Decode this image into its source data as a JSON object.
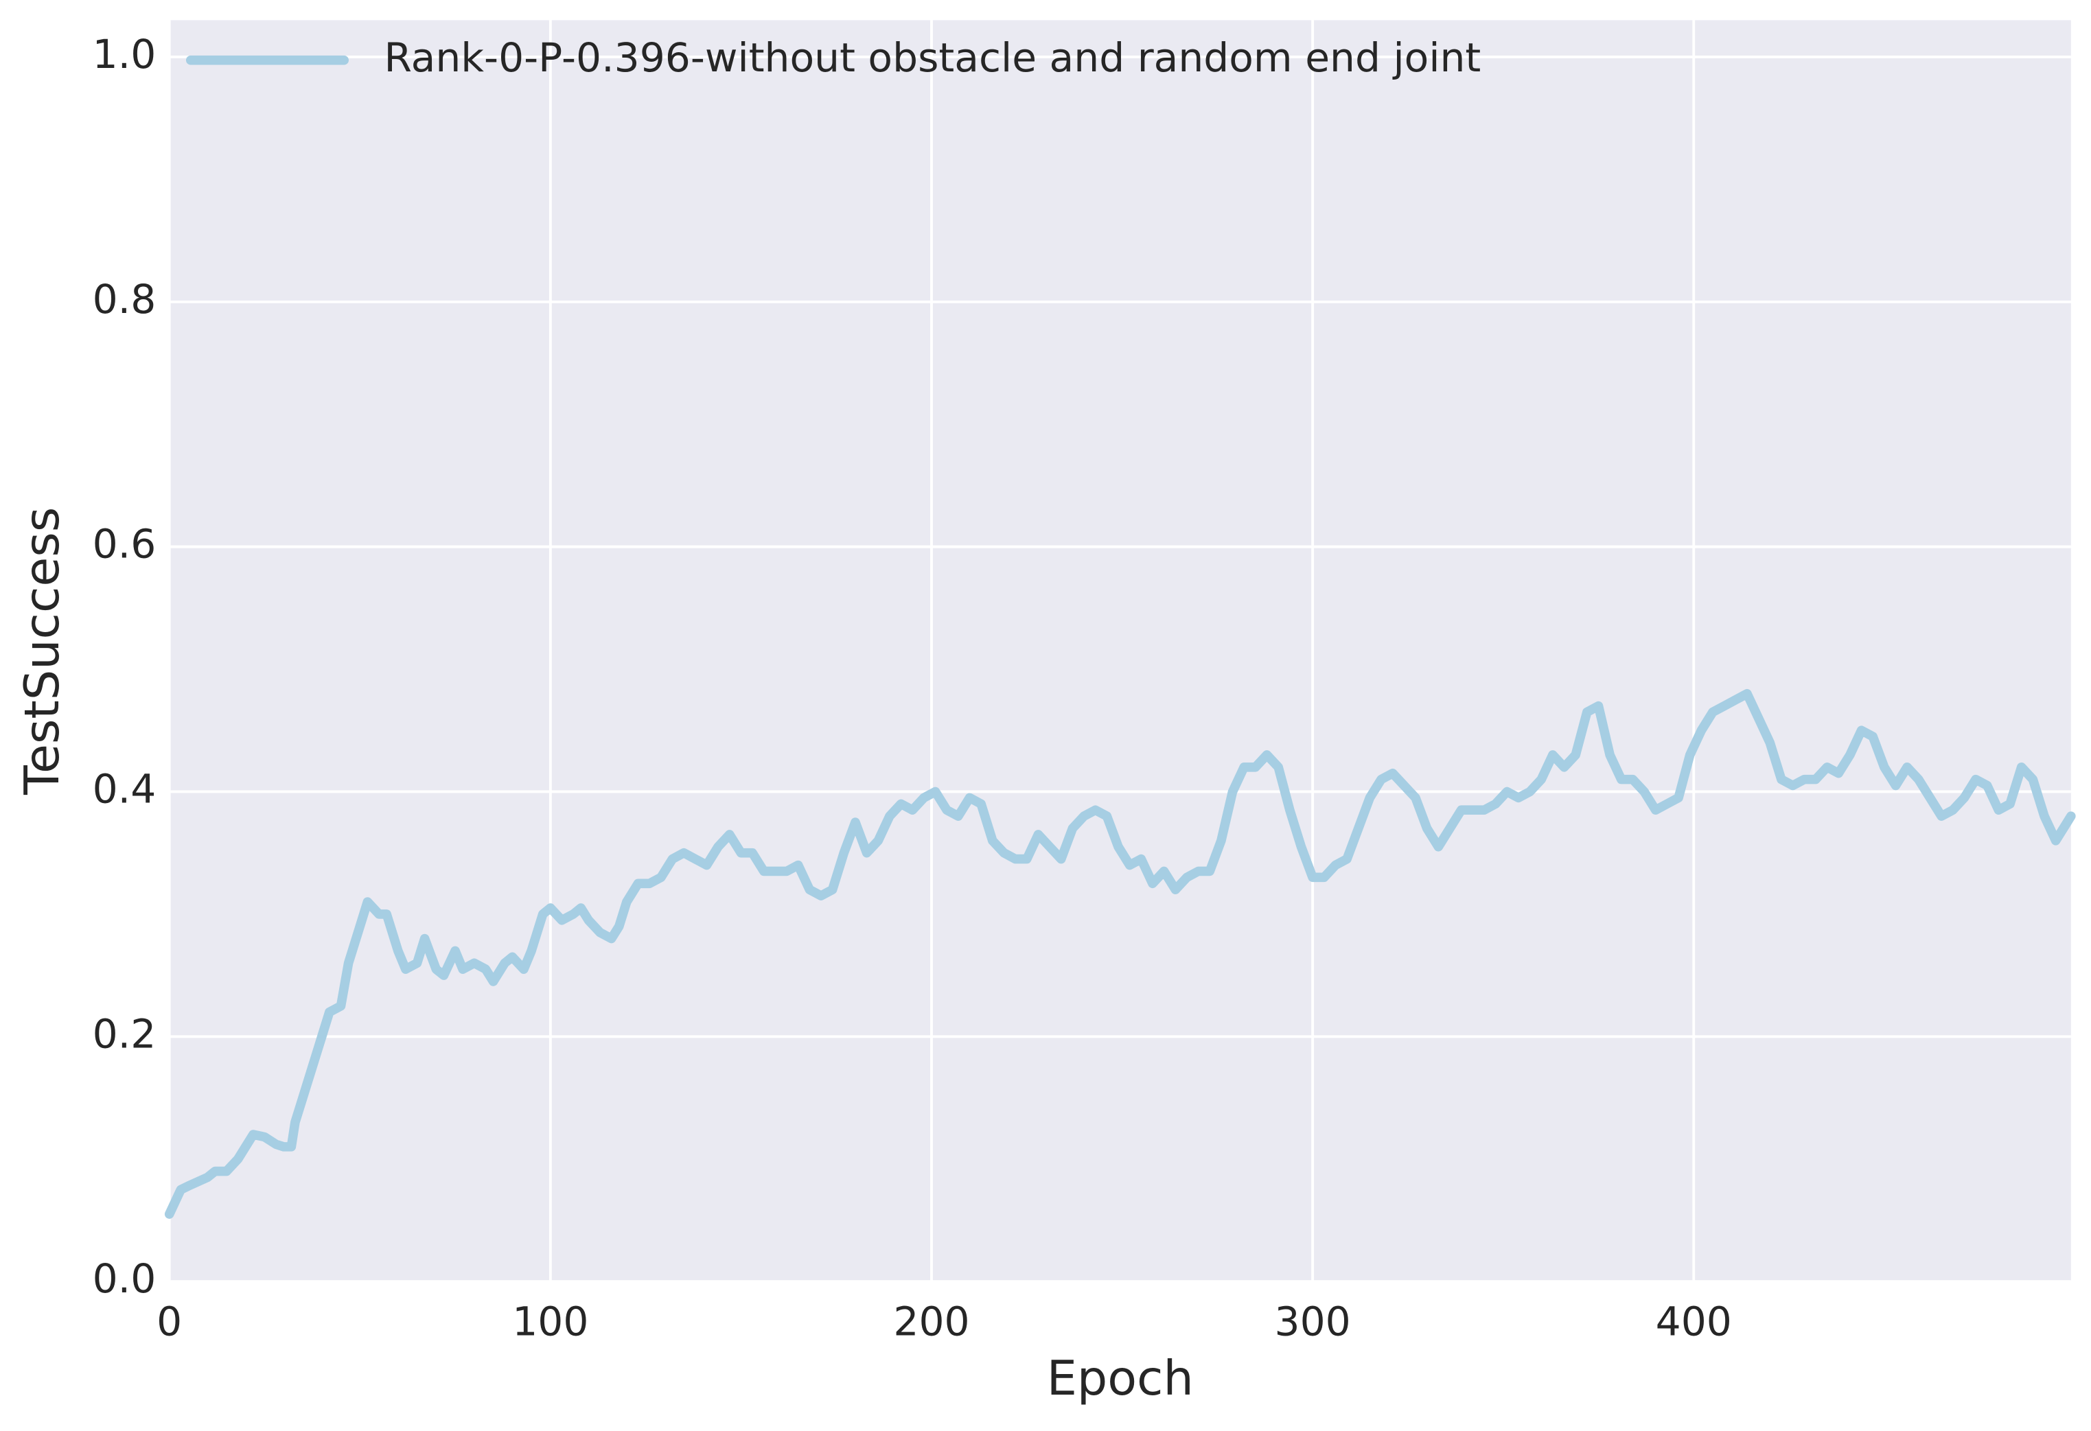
{
  "chart_data": {
    "type": "line",
    "xlabel": "Epoch",
    "ylabel": "TestSuccess",
    "xlim": [
      0,
      499
    ],
    "ylim": [
      0,
      1.03
    ],
    "xticks": [
      0,
      100,
      200,
      300,
      400
    ],
    "yticks": [
      {
        "value": 0,
        "label": "0.0"
      },
      0.2,
      0.4,
      0.6,
      0.8,
      {
        "value": 1,
        "label": "1.0"
      }
    ],
    "grid": true,
    "legend": "upper left",
    "background": "#eaeaf2",
    "x": [
      0,
      3,
      5,
      10,
      12,
      15,
      18,
      20,
      22,
      25,
      28,
      30,
      32,
      33,
      35,
      37,
      40,
      42,
      45,
      47,
      50,
      52,
      55,
      57,
      60,
      62,
      65,
      67,
      70,
      72,
      75,
      77,
      80,
      83,
      85,
      88,
      90,
      93,
      95,
      98,
      100,
      103,
      106,
      108,
      110,
      113,
      116,
      118,
      120,
      123,
      126,
      129,
      132,
      135,
      138,
      141,
      144,
      147,
      150,
      153,
      156,
      159,
      162,
      165,
      168,
      171,
      174,
      177,
      180,
      183,
      186,
      189,
      192,
      195,
      198,
      201,
      204,
      207,
      210,
      213,
      216,
      219,
      222,
      225,
      228,
      231,
      234,
      237,
      240,
      243,
      246,
      249,
      252,
      255,
      258,
      261,
      264,
      267,
      270,
      273,
      276,
      279,
      282,
      285,
      288,
      291,
      294,
      297,
      300,
      303,
      306,
      309,
      312,
      315,
      318,
      321,
      324,
      327,
      330,
      333,
      336,
      339,
      342,
      345,
      348,
      351,
      354,
      357,
      360,
      363,
      366,
      369,
      372,
      375,
      378,
      381,
      384,
      387,
      390,
      393,
      396,
      399,
      402,
      405,
      408,
      411,
      414,
      417,
      420,
      423,
      426,
      429,
      432,
      435,
      438,
      441,
      444,
      447,
      450,
      453,
      456,
      459,
      462,
      465,
      468,
      471,
      474,
      477,
      480,
      483,
      486,
      489,
      492,
      495,
      497,
      499
    ],
    "series": [
      {
        "name": "Rank-0-P-0.396-without obstacle and random end joint",
        "color": "#a6cee3",
        "values": [
          0.055,
          0.075,
          0.078,
          0.085,
          0.09,
          0.09,
          0.1,
          0.11,
          0.12,
          0.118,
          0.112,
          0.11,
          0.11,
          0.13,
          0.15,
          0.17,
          0.2,
          0.22,
          0.225,
          0.26,
          0.29,
          0.31,
          0.3,
          0.3,
          0.27,
          0.255,
          0.26,
          0.28,
          0.255,
          0.25,
          0.27,
          0.255,
          0.26,
          0.255,
          0.245,
          0.26,
          0.265,
          0.255,
          0.27,
          0.3,
          0.305,
          0.295,
          0.3,
          0.305,
          0.295,
          0.285,
          0.28,
          0.29,
          0.31,
          0.325,
          0.325,
          0.33,
          0.345,
          0.35,
          0.345,
          0.34,
          0.355,
          0.365,
          0.35,
          0.35,
          0.335,
          0.335,
          0.335,
          0.34,
          0.32,
          0.315,
          0.32,
          0.35,
          0.375,
          0.35,
          0.36,
          0.38,
          0.39,
          0.385,
          0.395,
          0.4,
          0.385,
          0.38,
          0.395,
          0.39,
          0.36,
          0.35,
          0.345,
          0.345,
          0.365,
          0.355,
          0.345,
          0.37,
          0.38,
          0.385,
          0.38,
          0.355,
          0.34,
          0.345,
          0.325,
          0.335,
          0.32,
          0.33,
          0.335,
          0.335,
          0.36,
          0.4,
          0.42,
          0.42,
          0.43,
          0.42,
          0.385,
          0.355,
          0.33,
          0.33,
          0.34,
          0.345,
          0.37,
          0.395,
          0.41,
          0.415,
          0.405,
          0.395,
          0.37,
          0.355,
          0.37,
          0.385,
          0.385,
          0.385,
          0.39,
          0.4,
          0.395,
          0.4,
          0.41,
          0.43,
          0.42,
          0.43,
          0.465,
          0.47,
          0.43,
          0.41,
          0.41,
          0.4,
          0.385,
          0.39,
          0.395,
          0.43,
          0.45,
          0.465,
          0.47,
          0.475,
          0.48,
          0.46,
          0.44,
          0.41,
          0.405,
          0.41,
          0.41,
          0.42,
          0.415,
          0.43,
          0.45,
          0.445,
          0.42,
          0.405,
          0.42,
          0.41,
          0.395,
          0.38,
          0.385,
          0.395,
          0.41,
          0.405,
          0.385,
          0.39,
          0.42,
          0.41,
          0.38,
          0.36,
          0.37,
          0.38
        ]
      }
    ]
  }
}
